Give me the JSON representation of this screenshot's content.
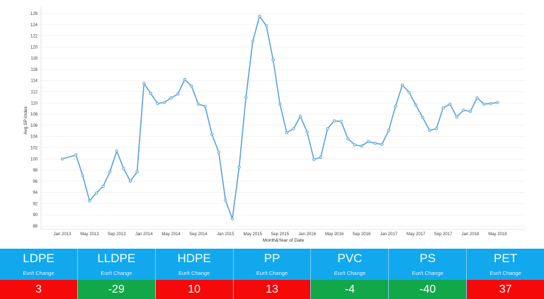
{
  "chart_data": {
    "type": "line",
    "title": "",
    "xlabel": "Month&Year of Date",
    "ylabel": "Avg SP-Index",
    "ylim": [
      88,
      126
    ],
    "yticks": [
      88,
      90,
      92,
      94,
      96,
      98,
      100,
      102,
      104,
      106,
      108,
      110,
      112,
      114,
      116,
      118,
      120,
      122,
      124,
      126
    ],
    "xtick_labels": [
      "Jan 2013",
      "May 2013",
      "Sep 2013",
      "Jan 2014",
      "May 2014",
      "Sep 2014",
      "Jan 2015",
      "May 2015",
      "Sep 2015",
      "Jan 2016",
      "May 2016",
      "Sep 2016",
      "Jan 2017",
      "May 2017",
      "Sep 2017",
      "Jan 2018",
      "May 2018"
    ],
    "grid": true,
    "line_color": "#5aa3dc",
    "series": [
      {
        "name": "Avg SP-Index",
        "points": [
          [
            "Jan 2013",
            100.0
          ],
          [
            "Mar 2013",
            100.7
          ],
          [
            "Apr 2013",
            97.0
          ],
          [
            "May 2013",
            92.5
          ],
          [
            "Jun 2013",
            93.9
          ],
          [
            "Jul 2013",
            95.1
          ],
          [
            "Aug 2013",
            97.7
          ],
          [
            "Sep 2013",
            101.4
          ],
          [
            "Oct 2013",
            98.3
          ],
          [
            "Nov 2013",
            96.0
          ],
          [
            "Dec 2013",
            97.7
          ],
          [
            "Jan 2014",
            113.5
          ],
          [
            "Feb 2014",
            111.7
          ],
          [
            "Mar 2014",
            109.9
          ],
          [
            "Apr 2014",
            110.1
          ],
          [
            "May 2014",
            110.9
          ],
          [
            "Jun 2014",
            111.6
          ],
          [
            "Jul 2014",
            114.2
          ],
          [
            "Aug 2014",
            113.0
          ],
          [
            "Sep 2014",
            109.8
          ],
          [
            "Oct 2014",
            109.4
          ],
          [
            "Nov 2014",
            104.4
          ],
          [
            "Dec 2014",
            101.2
          ],
          [
            "Jan 2015",
            92.6
          ],
          [
            "Feb 2015",
            89.3
          ],
          [
            "Mar 2015",
            98.5
          ],
          [
            "Apr 2015",
            111.0
          ],
          [
            "May 2015",
            121.0
          ],
          [
            "Jun 2015",
            125.5
          ],
          [
            "Jul 2015",
            123.8
          ],
          [
            "Aug 2015",
            117.7
          ],
          [
            "Sep 2015",
            109.8
          ],
          [
            "Oct 2015",
            104.7
          ],
          [
            "Nov 2015",
            105.4
          ],
          [
            "Dec 2015",
            107.6
          ],
          [
            "Jan 2016",
            104.8
          ],
          [
            "Feb 2016",
            99.9
          ],
          [
            "Mar 2016",
            100.3
          ],
          [
            "Apr 2016",
            105.4
          ],
          [
            "May 2016",
            106.8
          ],
          [
            "Jun 2016",
            106.7
          ],
          [
            "Jul 2016",
            103.6
          ],
          [
            "Aug 2016",
            102.5
          ],
          [
            "Sep 2016",
            102.3
          ],
          [
            "Oct 2016",
            103.1
          ],
          [
            "Nov 2016",
            102.8
          ],
          [
            "Dec 2016",
            102.6
          ],
          [
            "Jan 2017",
            105.1
          ],
          [
            "Feb 2017",
            109.4
          ],
          [
            "Mar 2017",
            113.2
          ],
          [
            "Apr 2017",
            111.9
          ],
          [
            "May 2017",
            109.6
          ],
          [
            "Jun 2017",
            107.4
          ],
          [
            "Jul 2017",
            105.1
          ],
          [
            "Aug 2017",
            105.4
          ],
          [
            "Sep 2017",
            109.1
          ],
          [
            "Oct 2017",
            109.8
          ],
          [
            "Nov 2017",
            107.5
          ],
          [
            "Dec 2017",
            108.7
          ],
          [
            "Jan 2018",
            108.5
          ],
          [
            "Feb 2018",
            110.9
          ],
          [
            "Mar 2018",
            109.8
          ],
          [
            "Apr 2018",
            109.9
          ],
          [
            "May 2018",
            110.1
          ]
        ]
      }
    ]
  },
  "cards_subtitle": "Eur/t Change",
  "colors": {
    "header": "#12a8ee",
    "up": "#f50a0a",
    "down": "#12a84a"
  },
  "cards": [
    {
      "name": "LDPE",
      "value": "3",
      "dir": "up"
    },
    {
      "name": "LLDPE",
      "value": "-29",
      "dir": "down"
    },
    {
      "name": "HDPE",
      "value": "10",
      "dir": "up"
    },
    {
      "name": "PP",
      "value": "13",
      "dir": "up"
    },
    {
      "name": "PVC",
      "value": "-4",
      "dir": "down"
    },
    {
      "name": "PS",
      "value": "-40",
      "dir": "down"
    },
    {
      "name": "PET",
      "value": "37",
      "dir": "up"
    }
  ]
}
